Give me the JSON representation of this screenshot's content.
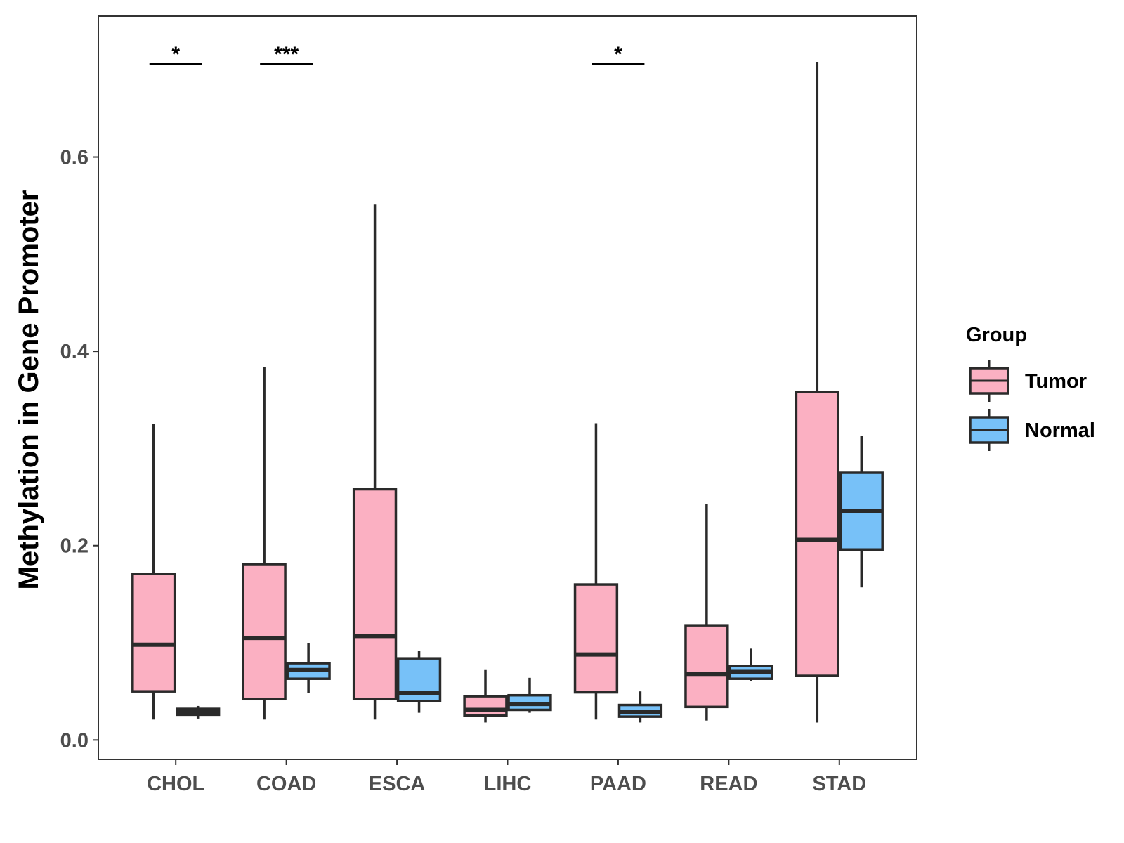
{
  "chart_data": {
    "type": "boxplot",
    "title": "",
    "xlabel": "",
    "ylabel": "Methylation in Gene Promoter",
    "ylim": [
      -0.02,
      0.745
    ],
    "yticks": [
      0.0,
      0.2,
      0.4,
      0.6
    ],
    "ytick_labels": [
      "0.0",
      "0.2",
      "0.4",
      "0.6"
    ],
    "categories": [
      "CHOL",
      "COAD",
      "ESCA",
      "LIHC",
      "PAAD",
      "READ",
      "STAD"
    ],
    "legend": {
      "title": "Group",
      "position": "right",
      "entries": [
        {
          "name": "Tumor",
          "color": "#FBB0C2"
        },
        {
          "name": "Normal",
          "color": "#77C1F8"
        }
      ]
    },
    "series": [
      {
        "name": "Tumor",
        "color": "#FBB0C2",
        "boxes": [
          {
            "category": "CHOL",
            "min": 0.021,
            "q1": 0.05,
            "median": 0.098,
            "q3": 0.171,
            "max": 0.325
          },
          {
            "category": "COAD",
            "min": 0.021,
            "q1": 0.042,
            "median": 0.105,
            "q3": 0.181,
            "max": 0.384
          },
          {
            "category": "ESCA",
            "min": 0.021,
            "q1": 0.042,
            "median": 0.107,
            "q3": 0.258,
            "max": 0.551
          },
          {
            "category": "LIHC",
            "min": 0.018,
            "q1": 0.025,
            "median": 0.031,
            "q3": 0.045,
            "max": 0.072
          },
          {
            "category": "PAAD",
            "min": 0.021,
            "q1": 0.049,
            "median": 0.088,
            "q3": 0.16,
            "max": 0.326
          },
          {
            "category": "READ",
            "min": 0.02,
            "q1": 0.034,
            "median": 0.068,
            "q3": 0.118,
            "max": 0.243
          },
          {
            "category": "STAD",
            "min": 0.018,
            "q1": 0.066,
            "median": 0.206,
            "q3": 0.358,
            "max": 0.698
          }
        ]
      },
      {
        "name": "Normal",
        "color": "#77C1F8",
        "boxes": [
          {
            "category": "CHOL",
            "min": 0.022,
            "q1": 0.026,
            "median": 0.029,
            "q3": 0.032,
            "max": 0.035
          },
          {
            "category": "COAD",
            "min": 0.048,
            "q1": 0.063,
            "median": 0.072,
            "q3": 0.079,
            "max": 0.1
          },
          {
            "category": "ESCA",
            "min": 0.028,
            "q1": 0.04,
            "median": 0.048,
            "q3": 0.084,
            "max": 0.092
          },
          {
            "category": "LIHC",
            "min": 0.028,
            "q1": 0.031,
            "median": 0.037,
            "q3": 0.046,
            "max": 0.064
          },
          {
            "category": "PAAD",
            "min": 0.018,
            "q1": 0.024,
            "median": 0.029,
            "q3": 0.036,
            "max": 0.05
          },
          {
            "category": "READ",
            "min": 0.061,
            "q1": 0.063,
            "median": 0.07,
            "q3": 0.076,
            "max": 0.094
          },
          {
            "category": "STAD",
            "min": 0.157,
            "q1": 0.196,
            "median": 0.236,
            "q3": 0.275,
            "max": 0.313
          }
        ]
      }
    ],
    "annotations": [
      {
        "category": "CHOL",
        "label": "*",
        "y": 0.696
      },
      {
        "category": "COAD",
        "label": "***",
        "y": 0.696
      },
      {
        "category": "PAAD",
        "label": "*",
        "y": 0.696
      }
    ]
  }
}
